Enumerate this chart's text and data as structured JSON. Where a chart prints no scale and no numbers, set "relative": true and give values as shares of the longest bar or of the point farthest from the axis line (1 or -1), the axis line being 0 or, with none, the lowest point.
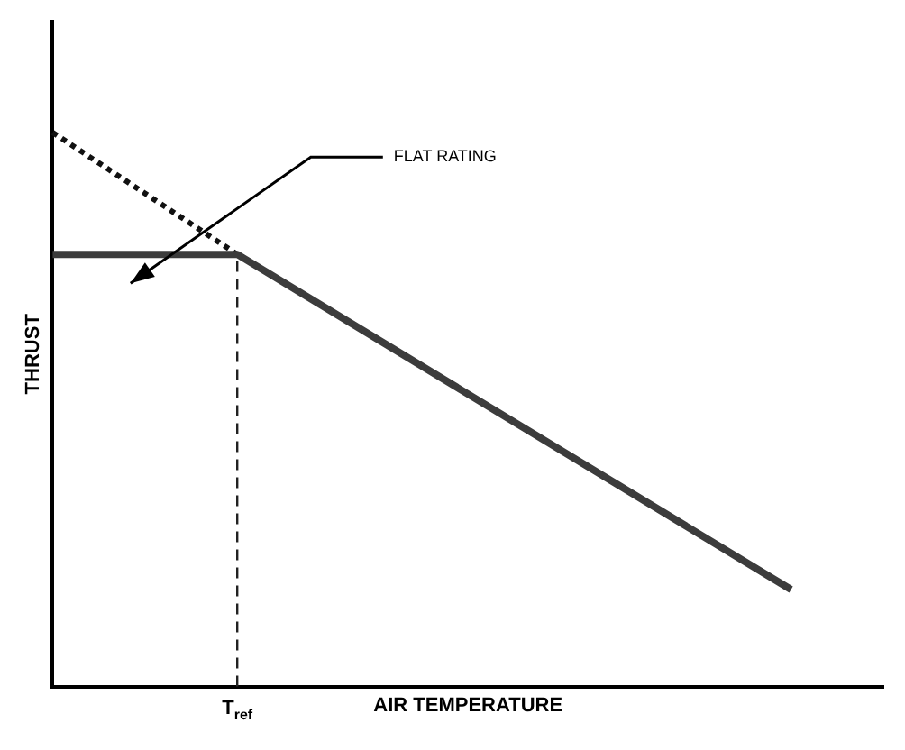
{
  "chart_data": {
    "type": "line",
    "relative": true,
    "xlabel": "AIR TEMPERATURE",
    "ylabel": "THRUST",
    "categories": [
      null,
      null,
      null,
      null,
      null,
      null,
      null,
      null,
      null,
      null,
      null,
      null,
      null,
      null,
      null,
      null,
      null,
      null,
      null
    ],
    "series": [
      {
        "values": [
          0.78,
          null,
          null,
          null,
          0.78,
          null,
          null,
          null,
          null,
          null,
          null,
          null,
          null,
          null,
          null,
          null,
          0.175,
          null,
          null
        ],
        "color": "#3c3c3c",
        "line_style": "solid"
      },
      {
        "values": [
          1,
          null,
          null,
          null,
          0.78,
          null,
          null,
          null,
          null,
          null,
          null,
          null,
          null,
          null,
          null,
          null,
          null,
          null,
          null
        ],
        "color": "#111111",
        "line_style": "dotted"
      }
    ],
    "annotations": [
      "FLAT RATING",
      "T$_{ref}$"
    ]
  }
}
